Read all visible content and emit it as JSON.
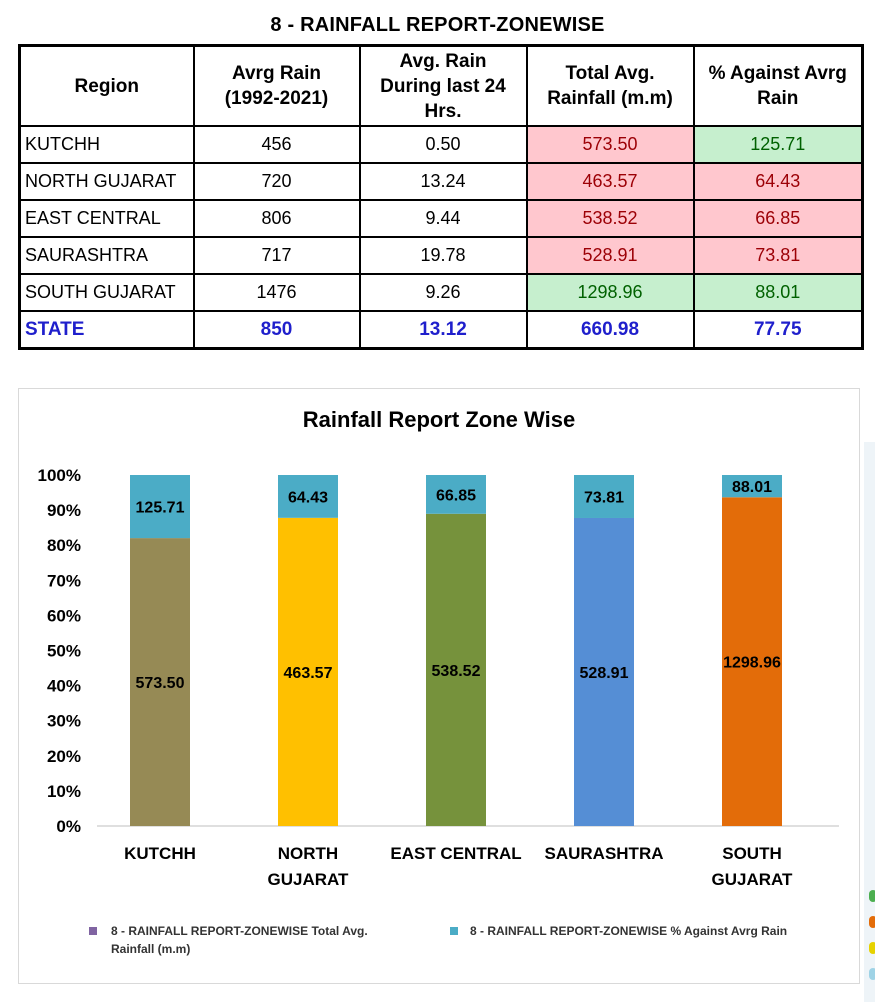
{
  "report": {
    "title": "8 - RAINFALL REPORT-ZONEWISE",
    "headers": [
      "Region",
      "Avrg Rain\n(1992-2021)",
      "Avg. Rain\nDuring last 24\nHrs.",
      "Total Avg.\nRainfall (m.m)",
      "% Against Avrg\nRain"
    ],
    "rows": [
      {
        "region": "KUTCHH",
        "avg": "456",
        "last24": "0.50",
        "total": "573.50",
        "pct": "125.71"
      },
      {
        "region": "NORTH GUJARAT",
        "avg": "720",
        "last24": "13.24",
        "total": "463.57",
        "pct": "64.43"
      },
      {
        "region": "EAST CENTRAL",
        "avg": "806",
        "last24": "9.44",
        "total": "538.52",
        "pct": "66.85"
      },
      {
        "region": "SAURASHTRA",
        "avg": "717",
        "last24": "19.78",
        "total": "528.91",
        "pct": "73.81"
      },
      {
        "region": "SOUTH GUJARAT",
        "avg": "1476",
        "last24": "9.26",
        "total": "1298.96",
        "pct": "88.01"
      }
    ],
    "state": {
      "region": "STATE",
      "avg": "850",
      "last24": "13.12",
      "total": "660.98",
      "pct": "77.75"
    }
  },
  "colors": {
    "highlight_red_bg": "#ffc7ce",
    "highlight_red_text": "#9c0006",
    "highlight_green_bg": "#c6efce",
    "highlight_green_text": "#006100",
    "state_text": "#1f1fcc"
  },
  "chart_data": {
    "type": "bar",
    "stacked": "100%",
    "title": "Rainfall Report Zone Wise",
    "categories": [
      [
        "KUTCHH"
      ],
      [
        "NORTH",
        "GUJARAT"
      ],
      [
        "EAST CENTRAL"
      ],
      [
        "SAURASHTRA"
      ],
      [
        "SOUTH",
        "GUJARAT"
      ]
    ],
    "series": [
      {
        "name": "8 - RAINFALL REPORT-ZONEWISE Total Avg. Rainfall (m.m)",
        "values": [
          573.5,
          463.57,
          538.52,
          528.91,
          1298.96
        ],
        "labels": [
          "573.50",
          "463.57",
          "538.52",
          "528.91",
          "1298.96"
        ],
        "colors": [
          "#968a55",
          "#ffc000",
          "#76923c",
          "#558ed5",
          "#e36c09"
        ],
        "legend_color": "#8064a2"
      },
      {
        "name": "8 - RAINFALL REPORT-ZONEWISE % Against Avrg Rain",
        "values": [
          125.71,
          64.43,
          66.85,
          73.81,
          88.01
        ],
        "labels": [
          "125.71",
          "64.43",
          "66.85",
          "73.81",
          "88.01"
        ],
        "color": "#4bacc6",
        "legend_color": "#4bacc6"
      }
    ],
    "y_ticks": [
      "0%",
      "10%",
      "20%",
      "30%",
      "40%",
      "50%",
      "60%",
      "70%",
      "80%",
      "90%",
      "100%"
    ],
    "ylim": [
      0,
      100
    ],
    "xlabel": "",
    "ylabel": "",
    "grid": false,
    "legend_position": "bottom",
    "legend_labels": [
      [
        "8 - RAINFALL REPORT-ZONEWISE Total Avg.",
        "Rainfall (m.m)"
      ],
      [
        "8 - RAINFALL REPORT-ZONEWISE % Against Avrg Rain"
      ]
    ]
  },
  "edge_dots": [
    "#4caf50",
    "#e36c09",
    "#e6d200",
    "#9fd3e6"
  ]
}
